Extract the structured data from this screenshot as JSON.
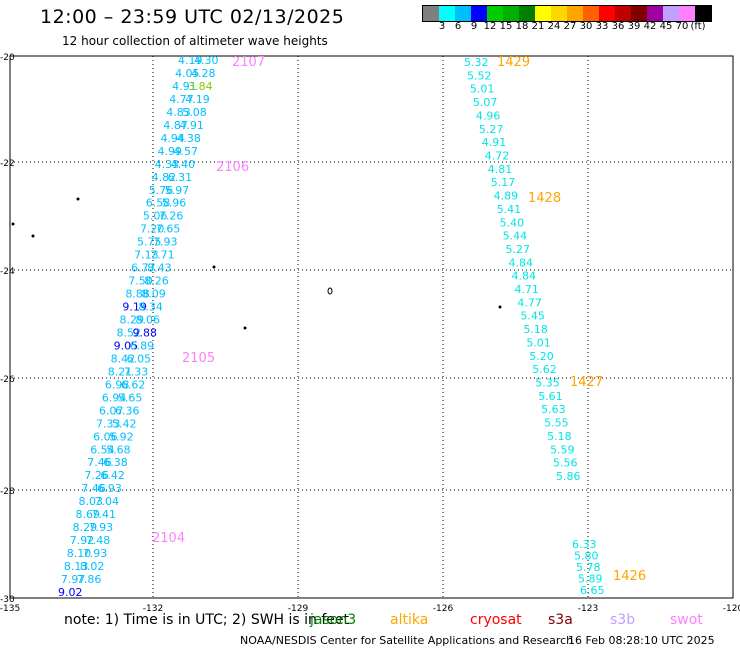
{
  "header": {
    "title": "12:00 – 23:59 UTC 02/13/2025",
    "subtitle": "12 hour collection of altimeter wave heights"
  },
  "legend": {
    "unit": "(ft)",
    "colors": [
      "#7f7f7f",
      "#00ffff",
      "#00bfff",
      "#0000ff",
      "#00cd00",
      "#00b000",
      "#008000",
      "#ffff00",
      "#ffd700",
      "#ffa500",
      "#ff6000",
      "#ff0000",
      "#c00000",
      "#800000",
      "#a000a0",
      "#c0a0ff",
      "#ff80ff",
      "#000000"
    ],
    "labels": [
      "3",
      "6",
      "9",
      "12",
      "15",
      "18",
      "21",
      "24",
      "27",
      "30",
      "33",
      "36",
      "39",
      "42",
      "45",
      "70"
    ]
  },
  "axes": {
    "lat_labels": [
      "-20",
      "-22",
      "-24",
      "-26",
      "-28",
      "-30"
    ],
    "lon_labels": [
      "-135",
      "-132",
      "-129",
      "-126",
      "-123",
      "-120"
    ]
  },
  "swh_tracks": [
    {
      "pass_labels": [
        {
          "text": "2107",
          "color": "#ff80ff"
        },
        {
          "text": "2106",
          "color": "#ff80ff"
        },
        {
          "text": "2105",
          "color": "#ff80ff"
        },
        {
          "text": "2104",
          "color": "#ff80ff"
        }
      ],
      "values": [
        {
          "v": "4.19",
          "c": "#00bfff"
        },
        {
          "v": "4.30",
          "c": "#00bfff"
        },
        {
          "v": "4.05",
          "c": "#00bfff"
        },
        {
          "v": "4.28",
          "c": "#00bfff"
        },
        {
          "v": "4.91",
          "c": "#00bfff"
        },
        {
          "v": "3.84",
          "c": "#7fcd00"
        },
        {
          "v": "4.77",
          "c": "#00bfff"
        },
        {
          "v": "4.19",
          "c": "#00bfff"
        },
        {
          "v": "4.83",
          "c": "#00bfff"
        },
        {
          "v": "5.08",
          "c": "#00bfff"
        },
        {
          "v": "4.87",
          "c": "#00bfff"
        },
        {
          "v": "4.91",
          "c": "#00bfff"
        },
        {
          "v": "4.94",
          "c": "#00bfff"
        },
        {
          "v": "4.38",
          "c": "#00bfff"
        },
        {
          "v": "4.99",
          "c": "#00bfff"
        },
        {
          "v": "4.57",
          "c": "#00bfff"
        },
        {
          "v": "4.33",
          "c": "#00bfff"
        },
        {
          "v": "4.40",
          "c": "#00bfff"
        },
        {
          "v": "4.82",
          "c": "#00bfff"
        },
        {
          "v": "6.31",
          "c": "#00bfff"
        },
        {
          "v": "5.76",
          "c": "#00bfff"
        },
        {
          "v": "5.97",
          "c": "#00bfff"
        },
        {
          "v": "6.58",
          "c": "#00bfff"
        },
        {
          "v": "5.96",
          "c": "#00bfff"
        },
        {
          "v": "5.06",
          "c": "#00bfff"
        },
        {
          "v": "7.26",
          "c": "#00bfff"
        },
        {
          "v": "7.20",
          "c": "#00bfff"
        },
        {
          "v": "7.65",
          "c": "#00bfff"
        },
        {
          "v": "5.75",
          "c": "#00bfff"
        },
        {
          "v": "7.93",
          "c": "#00bfff"
        },
        {
          "v": "7.13",
          "c": "#00bfff"
        },
        {
          "v": "7.71",
          "c": "#00bfff"
        },
        {
          "v": "6.77",
          "c": "#00bfff"
        },
        {
          "v": "8.43",
          "c": "#00bfff"
        },
        {
          "v": "7.50",
          "c": "#00bfff"
        },
        {
          "v": "8.26",
          "c": "#00bfff"
        },
        {
          "v": "8.88",
          "c": "#00bfff"
        },
        {
          "v": "8.09",
          "c": "#00bfff"
        },
        {
          "v": "9.19",
          "c": "#0000ff"
        },
        {
          "v": "8.34",
          "c": "#00bfff"
        },
        {
          "v": "8.29",
          "c": "#00bfff"
        },
        {
          "v": "8.06",
          "c": "#00bfff"
        },
        {
          "v": "8.52",
          "c": "#00bfff"
        },
        {
          "v": "9.88",
          "c": "#0000ff"
        },
        {
          "v": "9.05",
          "c": "#0000ff"
        },
        {
          "v": "6.89",
          "c": "#00bfff"
        },
        {
          "v": "8.42",
          "c": "#00bfff"
        },
        {
          "v": "6.05",
          "c": "#00bfff"
        },
        {
          "v": "8.21",
          "c": "#00bfff"
        },
        {
          "v": "7.33",
          "c": "#00bfff"
        },
        {
          "v": "6.98",
          "c": "#00bfff"
        },
        {
          "v": "6.62",
          "c": "#00bfff"
        },
        {
          "v": "6.94",
          "c": "#00bfff"
        },
        {
          "v": "5.65",
          "c": "#00bfff"
        },
        {
          "v": "6.07",
          "c": "#00bfff"
        },
        {
          "v": "6.36",
          "c": "#00bfff"
        },
        {
          "v": "7.33",
          "c": "#00bfff"
        },
        {
          "v": "5.42",
          "c": "#00bfff"
        },
        {
          "v": "6.06",
          "c": "#00bfff"
        },
        {
          "v": "5.92",
          "c": "#00bfff"
        },
        {
          "v": "6.54",
          "c": "#00bfff"
        },
        {
          "v": "5.68",
          "c": "#00bfff"
        },
        {
          "v": "7.46",
          "c": "#00bfff"
        },
        {
          "v": "6.38",
          "c": "#00bfff"
        },
        {
          "v": "7.26",
          "c": "#00bfff"
        },
        {
          "v": "6.42",
          "c": "#00bfff"
        },
        {
          "v": "7.46",
          "c": "#00bfff"
        },
        {
          "v": "6.93",
          "c": "#00bfff"
        },
        {
          "v": "8.03",
          "c": "#00bfff"
        },
        {
          "v": "7.04",
          "c": "#00bfff"
        },
        {
          "v": "8.69",
          "c": "#00bfff"
        },
        {
          "v": "7.41",
          "c": "#00bfff"
        },
        {
          "v": "8.29",
          "c": "#00bfff"
        },
        {
          "v": "7.93",
          "c": "#00bfff"
        },
        {
          "v": "7.92",
          "c": "#00bfff"
        },
        {
          "v": "7.48",
          "c": "#00bfff"
        },
        {
          "v": "8.10",
          "c": "#00bfff"
        },
        {
          "v": "7.93",
          "c": "#00bfff"
        },
        {
          "v": "8.13",
          "c": "#00bfff"
        },
        {
          "v": "8.02",
          "c": "#00bfff"
        },
        {
          "v": "7.97",
          "c": "#00bfff"
        },
        {
          "v": "7.86",
          "c": "#00bfff"
        },
        {
          "v": "9.02",
          "c": "#0000ff"
        }
      ]
    },
    {
      "pass_labels": [
        {
          "text": "1429",
          "color": "#ffa500"
        },
        {
          "text": "1428",
          "color": "#ffa500"
        },
        {
          "text": "1427",
          "color": "#ffa500"
        }
      ],
      "values": [
        {
          "v": "5.32",
          "c": "#00e5e5"
        },
        {
          "v": "5.52",
          "c": "#00e5e5"
        },
        {
          "v": "5.01",
          "c": "#00e5e5"
        },
        {
          "v": "5.07",
          "c": "#00e5e5"
        },
        {
          "v": "4.96",
          "c": "#00e5e5"
        },
        {
          "v": "5.27",
          "c": "#00e5e5"
        },
        {
          "v": "4.91",
          "c": "#00e5e5"
        },
        {
          "v": "4.72",
          "c": "#00e5e5"
        },
        {
          "v": "4.81",
          "c": "#00e5e5"
        },
        {
          "v": "5.17",
          "c": "#00e5e5"
        },
        {
          "v": "4.89",
          "c": "#00e5e5"
        },
        {
          "v": "5.41",
          "c": "#00e5e5"
        },
        {
          "v": "5.40",
          "c": "#00e5e5"
        },
        {
          "v": "5.44",
          "c": "#00e5e5"
        },
        {
          "v": "5.27",
          "c": "#00e5e5"
        },
        {
          "v": "4.84",
          "c": "#00e5e5"
        },
        {
          "v": "4.84",
          "c": "#00e5e5"
        },
        {
          "v": "4.71",
          "c": "#00e5e5"
        },
        {
          "v": "4.77",
          "c": "#00e5e5"
        },
        {
          "v": "5.45",
          "c": "#00e5e5"
        },
        {
          "v": "5.18",
          "c": "#00e5e5"
        },
        {
          "v": "5.01",
          "c": "#00e5e5"
        },
        {
          "v": "5.20",
          "c": "#00e5e5"
        },
        {
          "v": "5.62",
          "c": "#00e5e5"
        },
        {
          "v": "5.35",
          "c": "#00e5e5"
        },
        {
          "v": "5.61",
          "c": "#00e5e5"
        },
        {
          "v": "5.63",
          "c": "#00e5e5"
        },
        {
          "v": "5.55",
          "c": "#00e5e5"
        },
        {
          "v": "5.18",
          "c": "#00e5e5"
        },
        {
          "v": "5.59",
          "c": "#00e5e5"
        },
        {
          "v": "5.56",
          "c": "#00e5e5"
        },
        {
          "v": "5.86",
          "c": "#00e5e5"
        }
      ]
    },
    {
      "pass_labels": [
        {
          "text": "1426",
          "color": "#ffa500"
        }
      ],
      "values": [
        {
          "v": "6.33",
          "c": "#00e5e5"
        },
        {
          "v": "5.80",
          "c": "#00e5e5"
        },
        {
          "v": "5.78",
          "c": "#00e5e5"
        },
        {
          "v": "5.89",
          "c": "#00e5e5"
        },
        {
          "v": "6.65",
          "c": "#00e5e5"
        }
      ]
    }
  ],
  "footer": {
    "note": "note:  1) Time is in UTC;  2) SWH is in feet",
    "satellites": [
      {
        "name": "jason3",
        "color": "#008000"
      },
      {
        "name": "altika",
        "color": "#ffa500"
      },
      {
        "name": "cryosat",
        "color": "#ff0000"
      },
      {
        "name": "s3a",
        "color": "#800000"
      },
      {
        "name": "s3b",
        "color": "#c0a0ff"
      },
      {
        "name": "swot",
        "color": "#ff80ff"
      }
    ],
    "credit": "NOAA/NESDIS Center for Satellite Applications and Research",
    "timestamp": "16 Feb 08:28:10 UTC 2025"
  }
}
